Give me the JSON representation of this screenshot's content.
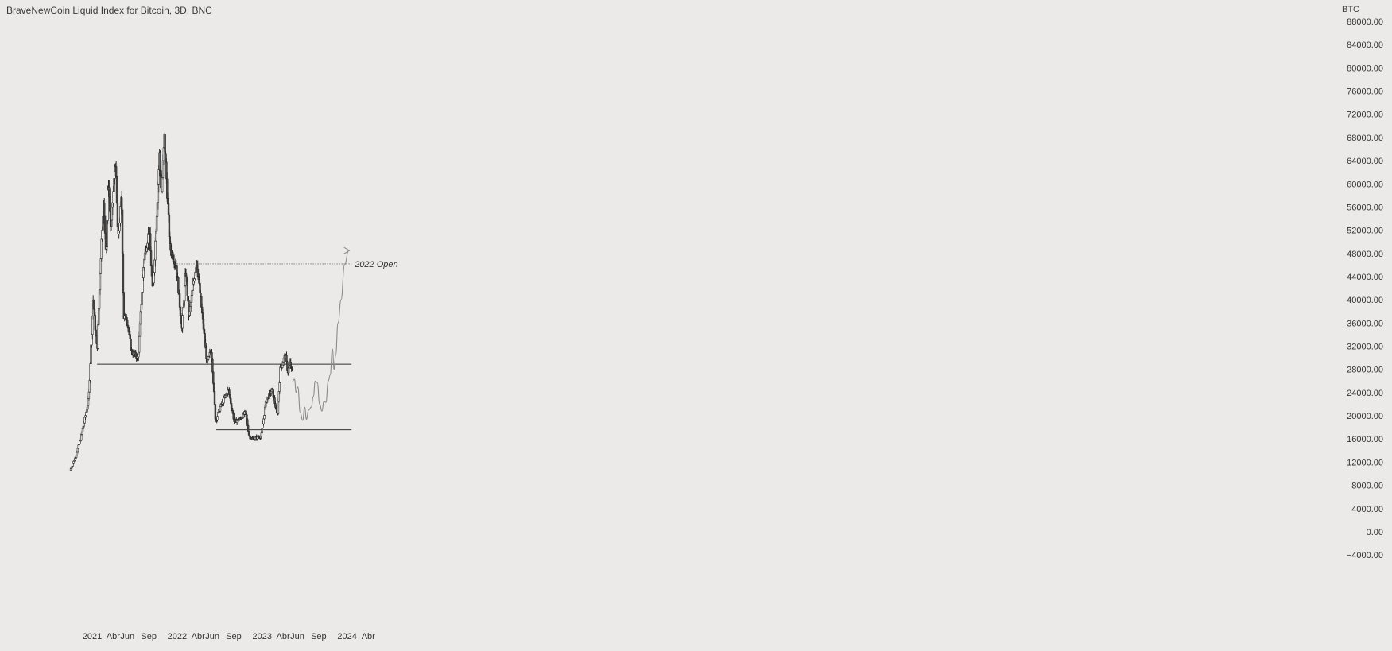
{
  "header": {
    "title": "BraveNewCoin Liquid Index for Bitcoin, 3D, BNC",
    "currency": "BTC"
  },
  "colors": {
    "background": "#ebeae8",
    "candle_up": "#f4f4f4",
    "candle_down": "#4a4a4a",
    "outline": "#2b2b2b",
    "projection": "#8a8a8a",
    "level_line": "#333333",
    "text": "#333333"
  },
  "chart_data": {
    "type": "candlestick",
    "y_axis": {
      "position": "right",
      "range": [
        -6000,
        90000
      ],
      "ticks": [
        "88000.00",
        "84000.00",
        "80000.00",
        "76000.00",
        "72000.00",
        "68000.00",
        "64000.00",
        "60000.00",
        "56000.00",
        "52000.00",
        "48000.00",
        "44000.00",
        "40000.00",
        "36000.00",
        "32000.00",
        "28000.00",
        "24000.00",
        "20000.00",
        "16000.00",
        "12000.00",
        "8000.00",
        "4000.00",
        "0.00",
        "−4000.00"
      ]
    },
    "x_axis": {
      "range": [
        "2020-10-01",
        "2024-06-01"
      ],
      "ticks": [
        {
          "label": "2021",
          "date": "2021-01-01"
        },
        {
          "label": "Abr",
          "date": "2021-04-01"
        },
        {
          "label": "Jun",
          "date": "2021-06-01"
        },
        {
          "label": "Sep",
          "date": "2021-09-01"
        },
        {
          "label": "2022",
          "date": "2022-01-01"
        },
        {
          "label": "Abr",
          "date": "2022-04-01"
        },
        {
          "label": "Jun",
          "date": "2022-06-01"
        },
        {
          "label": "Sep",
          "date": "2022-09-01"
        },
        {
          "label": "2023",
          "date": "2023-01-01"
        },
        {
          "label": "Abr",
          "date": "2023-04-01"
        },
        {
          "label": "Jun",
          "date": "2023-06-01"
        },
        {
          "label": "Sep",
          "date": "2023-09-01"
        },
        {
          "label": "2024",
          "date": "2024-01-01"
        },
        {
          "label": "Abr",
          "date": "2024-04-01"
        }
      ]
    },
    "price_path": [
      [
        "2020-10-01",
        10600
      ],
      [
        "2020-10-25",
        13000
      ],
      [
        "2020-11-15",
        16000
      ],
      [
        "2020-12-01",
        19000
      ],
      [
        "2020-12-20",
        23000
      ],
      [
        "2021-01-08",
        40000
      ],
      [
        "2021-01-25",
        31000
      ],
      [
        "2021-02-08",
        46000
      ],
      [
        "2021-02-21",
        57000
      ],
      [
        "2021-03-05",
        48000
      ],
      [
        "2021-03-14",
        61000
      ],
      [
        "2021-03-25",
        52000
      ],
      [
        "2021-04-14",
        64000
      ],
      [
        "2021-04-25",
        50000
      ],
      [
        "2021-05-10",
        58000
      ],
      [
        "2021-05-19",
        37000
      ],
      [
        "2021-06-01",
        37000
      ],
      [
        "2021-06-22",
        31000
      ],
      [
        "2021-07-20",
        30000
      ],
      [
        "2021-08-14",
        47000
      ],
      [
        "2021-09-06",
        52000
      ],
      [
        "2021-09-21",
        41000
      ],
      [
        "2021-10-20",
        65000
      ],
      [
        "2021-10-28",
        58000
      ],
      [
        "2021-11-10",
        68000
      ],
      [
        "2021-12-04",
        49000
      ],
      [
        "2021-12-31",
        46000
      ],
      [
        "2022-01-24",
        35000
      ],
      [
        "2022-02-10",
        45000
      ],
      [
        "2022-02-24",
        37000
      ],
      [
        "2022-03-28",
        47000
      ],
      [
        "2022-04-15",
        40000
      ],
      [
        "2022-05-12",
        29000
      ],
      [
        "2022-05-31",
        31500
      ],
      [
        "2022-06-18",
        19000
      ],
      [
        "2022-07-08",
        21500
      ],
      [
        "2022-08-12",
        24500
      ],
      [
        "2022-09-06",
        19000
      ],
      [
        "2022-09-30",
        19400
      ],
      [
        "2022-10-25",
        20600
      ],
      [
        "2022-11-09",
        16500
      ],
      [
        "2022-11-21",
        16000
      ],
      [
        "2022-12-31",
        16500
      ],
      [
        "2023-01-20",
        22500
      ],
      [
        "2023-02-16",
        24500
      ],
      [
        "2023-03-10",
        20000
      ],
      [
        "2023-03-23",
        28000
      ],
      [
        "2023-04-14",
        30500
      ],
      [
        "2023-04-24",
        27500
      ],
      [
        "2023-05-04",
        29000
      ],
      [
        "2023-05-10",
        27800
      ]
    ],
    "levels": [
      {
        "name": "2022 Open",
        "value": 46200,
        "style": "dotted",
        "from": "2021-12-31",
        "to": "2024-01-20"
      },
      {
        "name": "",
        "value": 28900,
        "style": "solid",
        "from": "2021-01-22",
        "to": "2024-01-20"
      },
      {
        "name": "",
        "value": 17600,
        "style": "solid",
        "from": "2022-06-18",
        "to": "2024-01-20"
      }
    ],
    "projection": [
      [
        "2023-05-11",
        26000
      ],
      [
        "2023-05-20",
        26300
      ],
      [
        "2023-05-27",
        24000
      ],
      [
        "2023-06-03",
        25000
      ],
      [
        "2023-06-14",
        20500
      ],
      [
        "2023-06-24",
        19200
      ],
      [
        "2023-07-03",
        21500
      ],
      [
        "2023-07-10",
        19400
      ],
      [
        "2023-07-20",
        21000
      ],
      [
        "2023-07-31",
        21500
      ],
      [
        "2023-08-09",
        23300
      ],
      [
        "2023-08-17",
        26000
      ],
      [
        "2023-08-26",
        25700
      ],
      [
        "2023-09-05",
        22000
      ],
      [
        "2023-09-15",
        20800
      ],
      [
        "2023-09-23",
        22500
      ],
      [
        "2023-10-02",
        22300
      ],
      [
        "2023-10-12",
        26000
      ],
      [
        "2023-10-20",
        27000
      ],
      [
        "2023-10-30",
        31500
      ],
      [
        "2023-11-06",
        28000
      ],
      [
        "2023-11-13",
        30500
      ],
      [
        "2023-11-23",
        36000
      ],
      [
        "2023-12-06",
        40000
      ],
      [
        "2023-12-21",
        46000
      ],
      [
        "2024-01-08",
        48500
      ]
    ]
  }
}
